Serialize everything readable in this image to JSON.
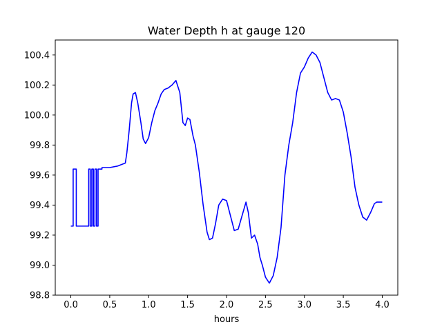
{
  "chart_data": {
    "type": "line",
    "title": "Water Depth h at gauge 120",
    "xlabel": "hours",
    "ylabel": "",
    "xlim": [
      -0.2,
      4.2
    ],
    "ylim": [
      98.8,
      100.5
    ],
    "xticks": [
      0.0,
      0.5,
      1.0,
      1.5,
      2.0,
      2.5,
      3.0,
      3.5,
      4.0
    ],
    "xtick_labels": [
      "0.0",
      "0.5",
      "1.0",
      "1.5",
      "2.0",
      "2.5",
      "3.0",
      "3.5",
      "4.0"
    ],
    "yticks": [
      98.8,
      99.0,
      99.2,
      99.4,
      99.6,
      99.8,
      100.0,
      100.2,
      100.4
    ],
    "ytick_labels": [
      "98.8",
      "99.0",
      "99.2",
      "99.4",
      "99.6",
      "99.8",
      "100.0",
      "100.2",
      "100.4"
    ],
    "grid": false,
    "line_color": "#0000ff",
    "series": [
      {
        "x": [
          0.0,
          0.03,
          0.03,
          0.07,
          0.07,
          0.23,
          0.23,
          0.25,
          0.25,
          0.27,
          0.27,
          0.29,
          0.29,
          0.31,
          0.31,
          0.33,
          0.33,
          0.35,
          0.35,
          0.4,
          0.4,
          0.5,
          0.6,
          0.65,
          0.7,
          0.72,
          0.75,
          0.78,
          0.8,
          0.83,
          0.86,
          0.9,
          0.93,
          0.96,
          1.0,
          1.04,
          1.08,
          1.12,
          1.16,
          1.2,
          1.25,
          1.3,
          1.35,
          1.4,
          1.44,
          1.47,
          1.5,
          1.53,
          1.57,
          1.6,
          1.65,
          1.7,
          1.75,
          1.78,
          1.82,
          1.86,
          1.9,
          1.95,
          2.0,
          2.05,
          2.1,
          2.15,
          2.2,
          2.25,
          2.28,
          2.32,
          2.36,
          2.4,
          2.43,
          2.46,
          2.5,
          2.55,
          2.6,
          2.65,
          2.7,
          2.75,
          2.8,
          2.85,
          2.9,
          2.95,
          3.0,
          3.05,
          3.1,
          3.15,
          3.2,
          3.25,
          3.3,
          3.35,
          3.4,
          3.45,
          3.5,
          3.55,
          3.6,
          3.65,
          3.7,
          3.75,
          3.8,
          3.85,
          3.9,
          3.93,
          3.96,
          4.0
        ],
        "y": [
          99.26,
          99.26,
          99.64,
          99.64,
          99.26,
          99.26,
          99.64,
          99.64,
          99.26,
          99.26,
          99.64,
          99.64,
          99.26,
          99.26,
          99.64,
          99.64,
          99.26,
          99.26,
          99.64,
          99.64,
          99.65,
          99.65,
          99.66,
          99.67,
          99.68,
          99.75,
          99.9,
          100.08,
          100.14,
          100.15,
          100.08,
          99.95,
          99.84,
          99.81,
          99.85,
          99.95,
          100.03,
          100.08,
          100.14,
          100.17,
          100.18,
          100.2,
          100.23,
          100.15,
          99.95,
          99.93,
          99.98,
          99.97,
          99.86,
          99.8,
          99.62,
          99.4,
          99.22,
          99.17,
          99.18,
          99.28,
          99.4,
          99.44,
          99.43,
          99.33,
          99.23,
          99.24,
          99.33,
          99.42,
          99.35,
          99.18,
          99.2,
          99.14,
          99.05,
          99.0,
          98.92,
          98.88,
          98.93,
          99.05,
          99.25,
          99.6,
          99.8,
          99.95,
          100.15,
          100.28,
          100.32,
          100.38,
          100.42,
          100.4,
          100.35,
          100.25,
          100.15,
          100.1,
          100.11,
          100.1,
          100.02,
          99.88,
          99.72,
          99.52,
          99.4,
          99.32,
          99.3,
          99.35,
          99.41,
          99.42,
          99.42,
          99.42
        ]
      }
    ]
  }
}
